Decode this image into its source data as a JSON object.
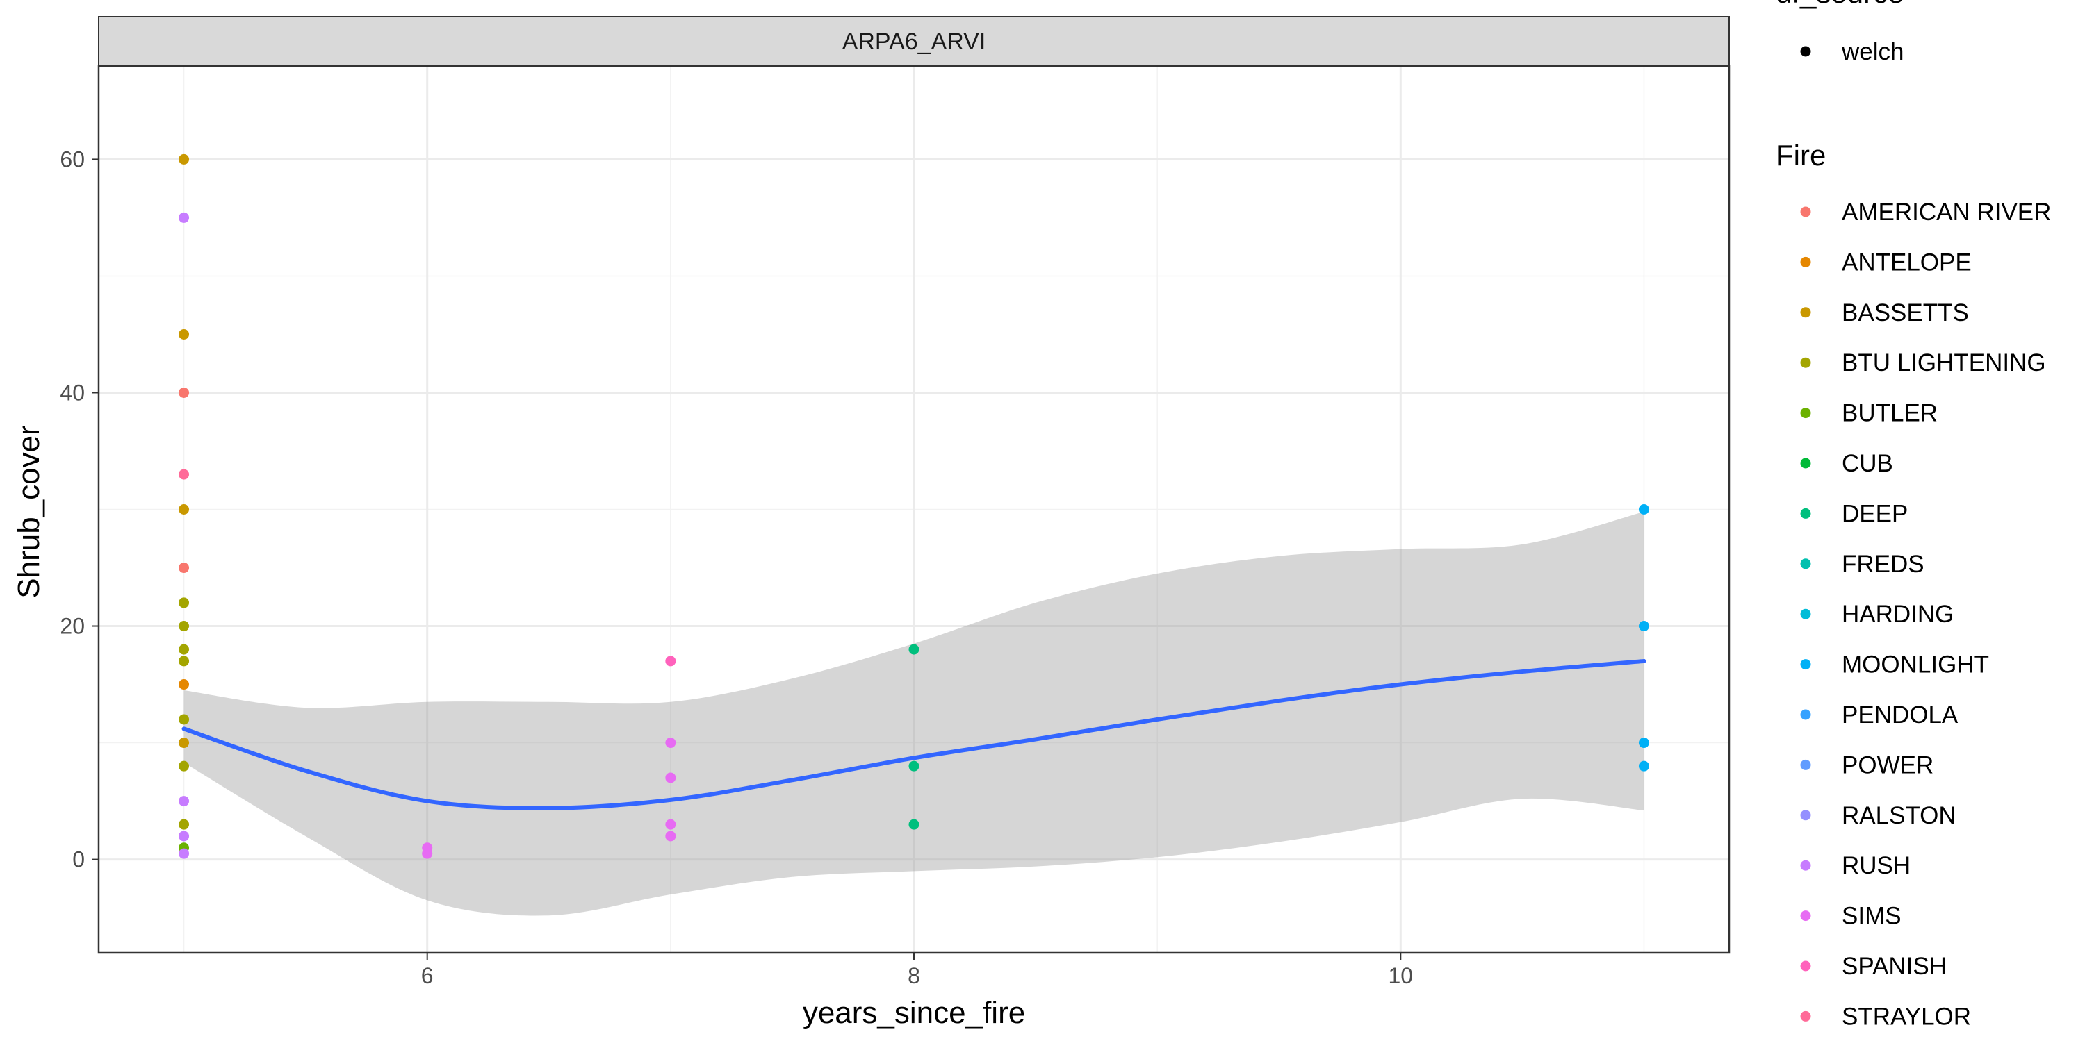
{
  "chart_data": {
    "type": "scatter",
    "facet_label": "ARPA6_ARVI",
    "xlabel": "years_since_fire",
    "ylabel": "Shrub_cover",
    "xlim": [
      4.65,
      11.35
    ],
    "ylim": [
      -8,
      68
    ],
    "x_ticks": [
      6,
      8,
      10
    ],
    "y_ticks": [
      0,
      20,
      40,
      60
    ],
    "grid": true,
    "legend_position": "right",
    "shape_legend": {
      "title": "df_source",
      "items": [
        "welch"
      ]
    },
    "color_legend": {
      "title": "Fire",
      "items": [
        {
          "name": "AMERICAN RIVER",
          "color": "#F8766D"
        },
        {
          "name": "ANTELOPE",
          "color": "#E58700"
        },
        {
          "name": "BASSETTS",
          "color": "#C99800"
        },
        {
          "name": "BTU LIGHTENING",
          "color": "#A3A500"
        },
        {
          "name": "BUTLER",
          "color": "#6BB100"
        },
        {
          "name": "CUB",
          "color": "#00BA38"
        },
        {
          "name": "DEEP",
          "color": "#00BF7D"
        },
        {
          "name": "FREDS",
          "color": "#00C0AF"
        },
        {
          "name": "HARDING",
          "color": "#00BCD8"
        },
        {
          "name": "MOONLIGHT",
          "color": "#00B0F6"
        },
        {
          "name": "PENDOLA",
          "color": "#35A2FF"
        },
        {
          "name": "POWER",
          "color": "#619CFF"
        },
        {
          "name": "RALSTON",
          "color": "#9590FF"
        },
        {
          "name": "RUSH",
          "color": "#C77CFF"
        },
        {
          "name": "SIMS",
          "color": "#E76BF3"
        },
        {
          "name": "SPANISH",
          "color": "#FF62BC"
        },
        {
          "name": "STRAYLOR",
          "color": "#FF6A98"
        }
      ]
    },
    "points": [
      {
        "x": 5,
        "y": 60,
        "fire": "BASSETTS"
      },
      {
        "x": 5,
        "y": 55,
        "fire": "RUSH"
      },
      {
        "x": 5,
        "y": 45,
        "fire": "BASSETTS"
      },
      {
        "x": 5,
        "y": 40,
        "fire": "AMERICAN RIVER"
      },
      {
        "x": 5,
        "y": 33,
        "fire": "STRAYLOR"
      },
      {
        "x": 5,
        "y": 30,
        "fire": "BASSETTS"
      },
      {
        "x": 5,
        "y": 25,
        "fire": "AMERICAN RIVER"
      },
      {
        "x": 5,
        "y": 22,
        "fire": "BTU LIGHTENING"
      },
      {
        "x": 5,
        "y": 20,
        "fire": "BTU LIGHTENING"
      },
      {
        "x": 5,
        "y": 18,
        "fire": "BTU LIGHTENING"
      },
      {
        "x": 5,
        "y": 17,
        "fire": "BTU LIGHTENING"
      },
      {
        "x": 5,
        "y": 15,
        "fire": "ANTELOPE"
      },
      {
        "x": 5,
        "y": 12,
        "fire": "BTU LIGHTENING"
      },
      {
        "x": 5,
        "y": 10,
        "fire": "BASSETTS"
      },
      {
        "x": 5,
        "y": 8,
        "fire": "BTU LIGHTENING"
      },
      {
        "x": 5,
        "y": 5,
        "fire": "RUSH"
      },
      {
        "x": 5,
        "y": 3,
        "fire": "BTU LIGHTENING"
      },
      {
        "x": 5,
        "y": 2,
        "fire": "RUSH"
      },
      {
        "x": 5,
        "y": 1,
        "fire": "BUTLER"
      },
      {
        "x": 5,
        "y": 0.5,
        "fire": "RUSH"
      },
      {
        "x": 6,
        "y": 1,
        "fire": "SIMS"
      },
      {
        "x": 6,
        "y": 0.5,
        "fire": "SIMS"
      },
      {
        "x": 7,
        "y": 17,
        "fire": "SPANISH"
      },
      {
        "x": 7,
        "y": 10,
        "fire": "SIMS"
      },
      {
        "x": 7,
        "y": 7,
        "fire": "SIMS"
      },
      {
        "x": 7,
        "y": 3,
        "fire": "SIMS"
      },
      {
        "x": 7,
        "y": 2,
        "fire": "SIMS"
      },
      {
        "x": 8,
        "y": 18,
        "fire": "DEEP"
      },
      {
        "x": 8,
        "y": 8,
        "fire": "DEEP"
      },
      {
        "x": 8,
        "y": 3,
        "fire": "DEEP"
      },
      {
        "x": 11,
        "y": 30,
        "fire": "MOONLIGHT"
      },
      {
        "x": 11,
        "y": 20,
        "fire": "MOONLIGHT"
      },
      {
        "x": 11,
        "y": 10,
        "fire": "MOONLIGHT"
      },
      {
        "x": 11,
        "y": 8,
        "fire": "MOONLIGHT"
      }
    ],
    "smooth_line": {
      "color": "#3366FF",
      "x": [
        5,
        5.5,
        6,
        6.5,
        7,
        7.5,
        8,
        8.5,
        9,
        9.5,
        10,
        10.5,
        11
      ],
      "y": [
        11.2,
        7.6,
        5.0,
        4.4,
        5.1,
        6.8,
        8.7,
        10.3,
        12.0,
        13.6,
        15.0,
        16.1,
        17.0
      ],
      "ci_lower": [
        8.3,
        2.0,
        -3.5,
        -4.8,
        -3.0,
        -1.5,
        -1.0,
        -0.6,
        0.2,
        1.5,
        3.2,
        5.2,
        4.2
      ],
      "ci_upper": [
        14.5,
        13.0,
        13.5,
        13.5,
        13.5,
        15.5,
        18.5,
        22.0,
        24.5,
        26.0,
        26.6,
        27.0,
        29.8
      ]
    }
  }
}
